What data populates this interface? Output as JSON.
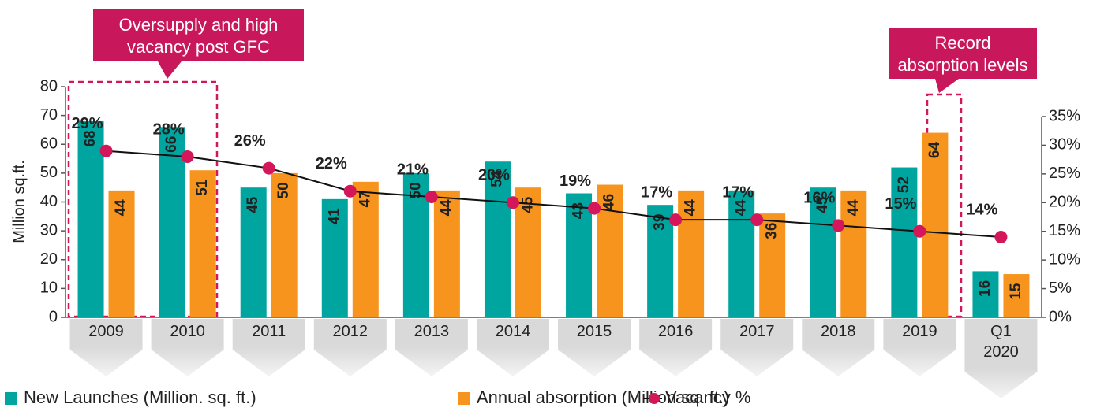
{
  "chart_data": {
    "type": "bar",
    "y_label": "Million sq.ft.",
    "categories": [
      "2009",
      "2010",
      "2011",
      "2012",
      "2013",
      "2014",
      "2015",
      "2016",
      "2017",
      "2018",
      "2019",
      "Q1 2020"
    ],
    "series": [
      {
        "name": "New Launches (Million. sq. ft.)",
        "color": "#00a59f",
        "values": [
          68,
          66,
          45,
          41,
          50,
          54,
          43,
          39,
          44,
          45,
          52,
          16
        ]
      },
      {
        "name": "Annual absorption (Million sq. ft.)",
        "color": "#f7941d",
        "values": [
          44,
          51,
          50,
          47,
          44,
          45,
          46,
          44,
          36,
          44,
          64,
          15
        ]
      },
      {
        "name": "Vacancy %",
        "type": "line",
        "axis": "y2",
        "color": "#d3175a",
        "values": [
          29,
          28,
          26,
          22,
          21,
          20,
          19,
          17,
          17,
          16,
          15,
          14
        ],
        "value_labels": [
          "29%",
          "28%",
          "26%",
          "22%",
          "21%",
          "20%",
          "19%",
          "17%",
          "17%",
          "16%",
          "15%",
          "14%"
        ]
      }
    ],
    "ylim": [
      0,
      80
    ],
    "yticks": [
      0,
      10,
      20,
      30,
      40,
      50,
      60,
      70,
      80
    ],
    "y2lim": [
      0,
      35
    ],
    "y2ticks": [
      {
        "value": 0,
        "label": "0%"
      },
      {
        "value": 5,
        "label": "5%"
      },
      {
        "value": 10,
        "label": "10%"
      },
      {
        "value": 15,
        "label": "15%"
      },
      {
        "value": 20,
        "label": "20%"
      },
      {
        "value": 25,
        "label": "25%"
      },
      {
        "value": 30,
        "label": "30%"
      },
      {
        "value": 35,
        "label": "35%"
      }
    ],
    "annotations": [
      "Oversupply and high vacancy post GFC",
      "Record absorption levels"
    ],
    "legend": "bottom"
  }
}
